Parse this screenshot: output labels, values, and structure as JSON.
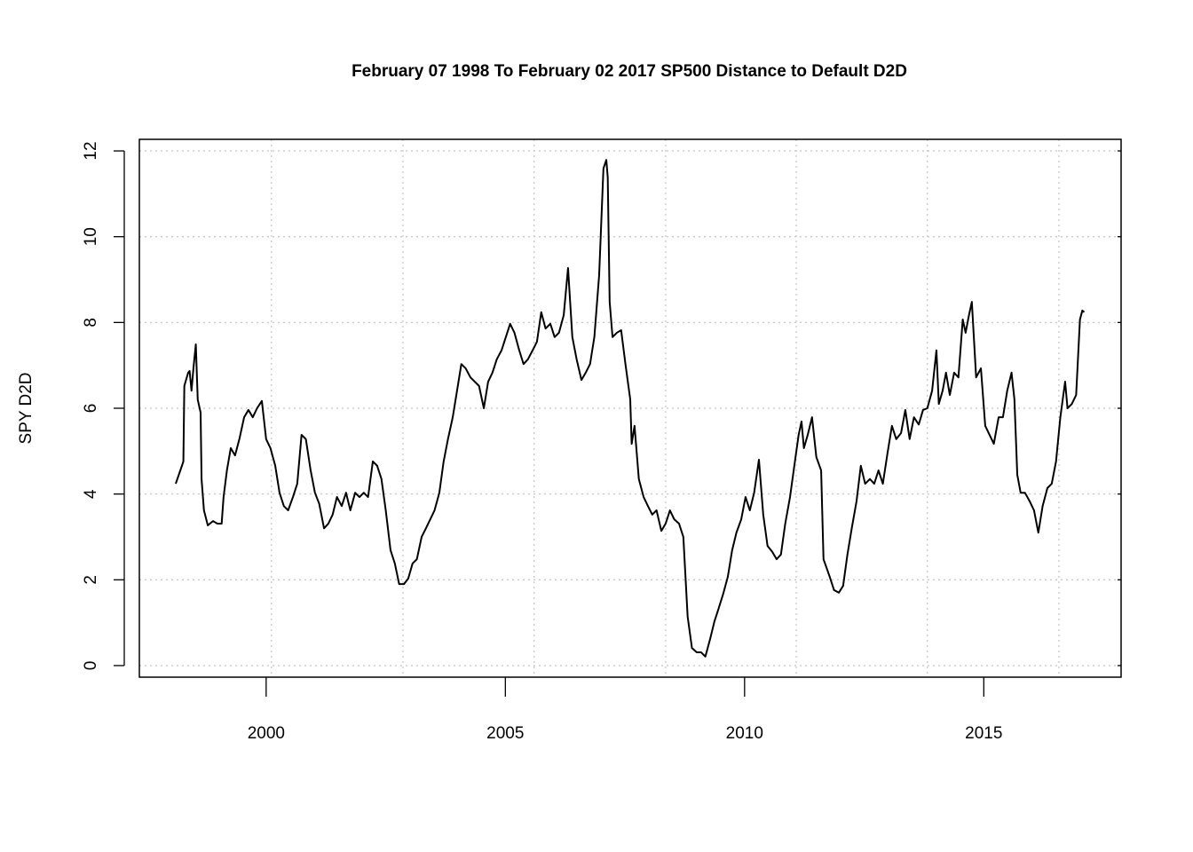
{
  "chart_data": {
    "type": "line",
    "title": "February 07 1998 To February 02 2017 SP500 Distance to Default D2D",
    "ylabel": "SPY D2D",
    "color": "#000000",
    "grid": true,
    "xlim": [
      1997.35,
      2017.87
    ],
    "ylim": [
      -0.27,
      12.27
    ],
    "xticks": [
      2000,
      2005,
      2010,
      2015
    ],
    "yticks": [
      0,
      2,
      4,
      6,
      8,
      10,
      12
    ],
    "xgrid": [
      2000.11,
      2002.86,
      2005.6,
      2008.35,
      2011.08,
      2013.82,
      2016.57
    ],
    "x": [
      1998.11,
      1998.24,
      1998.27,
      1998.29,
      1998.37,
      1998.4,
      1998.44,
      1998.48,
      1998.53,
      1998.57,
      1998.63,
      1998.65,
      1998.7,
      1998.78,
      1998.89,
      1998.98,
      1999.07,
      1999.11,
      1999.18,
      1999.26,
      1999.35,
      1999.44,
      1999.54,
      1999.63,
      1999.72,
      1999.81,
      1999.91,
      2000.0,
      2000.09,
      2000.19,
      2000.28,
      2000.37,
      2000.46,
      2000.56,
      2000.65,
      2000.74,
      2000.83,
      2000.93,
      2001.02,
      2001.11,
      2001.21,
      2001.3,
      2001.39,
      2001.48,
      2001.58,
      2001.67,
      2001.76,
      2001.86,
      2001.95,
      2002.04,
      2002.13,
      2002.23,
      2002.32,
      2002.41,
      2002.5,
      2002.6,
      2002.69,
      2002.78,
      2002.88,
      2002.97,
      2003.06,
      2003.15,
      2003.25,
      2003.34,
      2003.43,
      2003.52,
      2003.62,
      2003.71,
      2003.8,
      2003.9,
      2003.99,
      2004.08,
      2004.17,
      2004.27,
      2004.36,
      2004.45,
      2004.55,
      2004.64,
      2004.73,
      2004.82,
      2004.92,
      2005.01,
      2005.1,
      2005.19,
      2005.29,
      2005.38,
      2005.47,
      2005.57,
      2005.66,
      2005.75,
      2005.84,
      2005.94,
      2006.03,
      2006.12,
      2006.22,
      2006.31,
      2006.4,
      2006.49,
      2006.59,
      2006.68,
      2006.77,
      2006.86,
      2006.96,
      2007.05,
      2007.11,
      2007.14,
      2007.18,
      2007.24,
      2007.33,
      2007.42,
      2007.51,
      2007.61,
      2007.64,
      2007.7,
      2007.79,
      2007.89,
      2007.98,
      2008.07,
      2008.16,
      2008.26,
      2008.35,
      2008.44,
      2008.53,
      2008.63,
      2008.72,
      2008.81,
      2008.9,
      2009.0,
      2009.09,
      2009.18,
      2009.28,
      2009.37,
      2009.46,
      2009.55,
      2009.65,
      2009.74,
      2009.83,
      2009.93,
      2010.02,
      2010.11,
      2010.2,
      2010.3,
      2010.39,
      2010.48,
      2010.58,
      2010.67,
      2010.76,
      2010.85,
      2010.95,
      2011.04,
      2011.13,
      2011.19,
      2011.24,
      2011.32,
      2011.41,
      2011.5,
      2011.6,
      2011.65,
      2011.78,
      2011.87,
      2011.97,
      2012.06,
      2012.15,
      2012.24,
      2012.34,
      2012.43,
      2012.52,
      2012.62,
      2012.71,
      2012.8,
      2012.89,
      2012.99,
      2013.08,
      2013.17,
      2013.27,
      2013.36,
      2013.45,
      2013.54,
      2013.64,
      2013.73,
      2013.82,
      2013.92,
      2014.01,
      2014.06,
      2014.14,
      2014.21,
      2014.29,
      2014.38,
      2014.47,
      2014.56,
      2014.62,
      2014.69,
      2014.75,
      2014.84,
      2014.94,
      2015.03,
      2015.12,
      2015.21,
      2015.31,
      2015.4,
      2015.49,
      2015.58,
      2015.64,
      2015.7,
      2015.77,
      2015.86,
      2015.96,
      2016.05,
      2016.14,
      2016.23,
      2016.33,
      2016.42,
      2016.51,
      2016.6,
      2016.7,
      2016.75,
      2016.84,
      2016.93,
      2017.01,
      2017.06,
      2017.1
    ],
    "values": [
      4.24,
      4.66,
      4.76,
      6.52,
      6.83,
      6.87,
      6.41,
      6.93,
      7.49,
      6.2,
      5.9,
      4.35,
      3.62,
      3.27,
      3.37,
      3.31,
      3.31,
      3.93,
      4.55,
      5.07,
      4.9,
      5.28,
      5.79,
      5.96,
      5.79,
      6.0,
      6.17,
      5.28,
      5.07,
      4.66,
      4.03,
      3.72,
      3.62,
      3.93,
      4.24,
      5.38,
      5.28,
      4.55,
      4.03,
      3.77,
      3.2,
      3.31,
      3.52,
      3.93,
      3.72,
      4.03,
      3.62,
      4.03,
      3.93,
      4.03,
      3.93,
      4.76,
      4.66,
      4.35,
      3.62,
      2.69,
      2.38,
      1.9,
      1.9,
      2.03,
      2.38,
      2.48,
      3.0,
      3.2,
      3.41,
      3.62,
      4.03,
      4.76,
      5.28,
      5.79,
      6.41,
      7.03,
      6.93,
      6.72,
      6.62,
      6.52,
      6.0,
      6.62,
      6.83,
      7.14,
      7.35,
      7.66,
      7.97,
      7.76,
      7.35,
      7.03,
      7.14,
      7.35,
      7.55,
      8.24,
      7.86,
      7.97,
      7.66,
      7.76,
      8.17,
      9.27,
      7.66,
      7.14,
      6.66,
      6.83,
      7.03,
      7.66,
      9.1,
      11.59,
      11.79,
      11.38,
      8.48,
      7.66,
      7.76,
      7.82,
      7.03,
      6.21,
      5.17,
      5.59,
      4.35,
      3.93,
      3.72,
      3.52,
      3.62,
      3.14,
      3.31,
      3.62,
      3.41,
      3.31,
      3.0,
      1.14,
      0.41,
      0.31,
      0.31,
      0.21,
      0.62,
      1.03,
      1.34,
      1.66,
      2.07,
      2.69,
      3.1,
      3.41,
      3.93,
      3.62,
      4.03,
      4.8,
      3.52,
      2.79,
      2.65,
      2.48,
      2.59,
      3.31,
      3.93,
      4.66,
      5.38,
      5.69,
      5.07,
      5.38,
      5.79,
      4.86,
      4.55,
      2.48,
      2.07,
      1.76,
      1.7,
      1.86,
      2.59,
      3.2,
      3.83,
      4.66,
      4.24,
      4.35,
      4.24,
      4.55,
      4.24,
      4.97,
      5.59,
      5.28,
      5.42,
      5.96,
      5.28,
      5.79,
      5.62,
      5.96,
      6.0,
      6.41,
      7.35,
      6.1,
      6.41,
      6.83,
      6.31,
      6.83,
      6.72,
      8.07,
      7.76,
      8.17,
      8.48,
      6.72,
      6.93,
      5.59,
      5.38,
      5.17,
      5.79,
      5.79,
      6.41,
      6.83,
      6.21,
      4.45,
      4.03,
      4.03,
      3.83,
      3.62,
      3.1,
      3.72,
      4.14,
      4.24,
      4.76,
      5.79,
      6.62,
      6.0,
      6.1,
      6.31,
      8.07,
      8.28,
      8.24
    ]
  }
}
